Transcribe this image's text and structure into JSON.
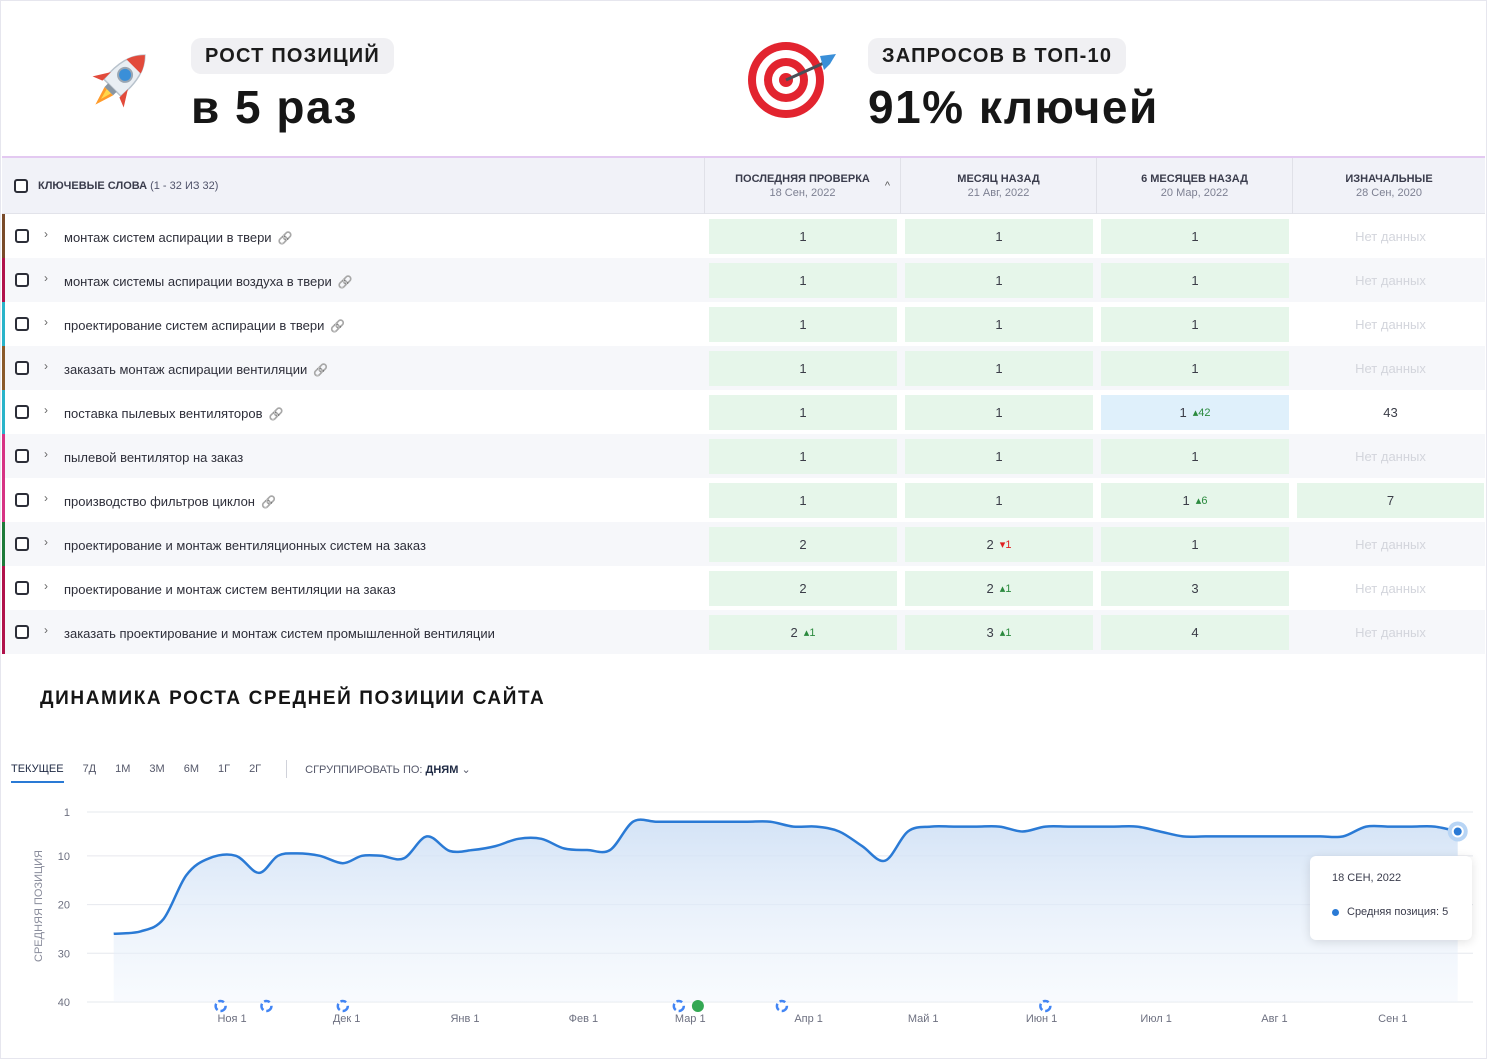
{
  "stats": [
    {
      "pill": "РОСТ ПОЗИЦИЙ",
      "big": "в 5 раз",
      "icon": "rocket-icon"
    },
    {
      "pill": "ЗАПРОСОВ В ТОП-10",
      "big": "91% ключей",
      "icon": "target-icon"
    }
  ],
  "table": {
    "keywords_header": "КЛЮЧЕВЫЕ СЛОВА",
    "keywords_count": "(1 - 32 ИЗ 32)",
    "columns": [
      {
        "title": "ПОСЛЕДНЯЯ ПРОВЕРКА",
        "date": "18 Сен, 2022"
      },
      {
        "title": "МЕСЯЦ НАЗАД",
        "date": "21 Авг, 2022"
      },
      {
        "title": "6 МЕСЯЦЕВ НАЗАД",
        "date": "20 Мар, 2022"
      },
      {
        "title": "ИЗНАЧАЛЬНЫЕ",
        "date": "28 Сен, 2020"
      }
    ],
    "no_data": "Нет данных",
    "rows": [
      {
        "keyword": "монтаж систем аспирации в твери",
        "link": true,
        "color": "#7a4b2a",
        "cells": [
          {
            "v": "1"
          },
          {
            "v": "1"
          },
          {
            "v": "1"
          },
          {
            "v": "Нет данных",
            "nd": true
          }
        ]
      },
      {
        "keyword": "монтаж системы аспирации воздуха в твери",
        "link": true,
        "color": "#b0124b",
        "cells": [
          {
            "v": "1"
          },
          {
            "v": "1"
          },
          {
            "v": "1"
          },
          {
            "v": "Нет данных",
            "nd": true
          }
        ]
      },
      {
        "keyword": "проектирование систем аспирации в твери",
        "link": true,
        "color": "#2ab3c9",
        "cells": [
          {
            "v": "1"
          },
          {
            "v": "1"
          },
          {
            "v": "1"
          },
          {
            "v": "Нет данных",
            "nd": true
          }
        ]
      },
      {
        "keyword": "заказать монтаж аспирации вентиляции",
        "link": true,
        "color": "#8a5a2a",
        "cells": [
          {
            "v": "1"
          },
          {
            "v": "1"
          },
          {
            "v": "1"
          },
          {
            "v": "Нет данных",
            "nd": true
          }
        ]
      },
      {
        "keyword": "поставка пылевых вентиляторов",
        "link": true,
        "color": "#2ab3c9",
        "cells": [
          {
            "v": "1"
          },
          {
            "v": "1"
          },
          {
            "v": "1",
            "chg": "42",
            "dir": "up",
            "bg": "b"
          },
          {
            "v": "43",
            "plain": true
          }
        ]
      },
      {
        "keyword": "пылевой вентилятор на заказ",
        "link": false,
        "color": "#d63384",
        "cells": [
          {
            "v": "1"
          },
          {
            "v": "1"
          },
          {
            "v": "1"
          },
          {
            "v": "Нет данных",
            "nd": true
          }
        ]
      },
      {
        "keyword": "производство фильтров циклон",
        "link": true,
        "color": "#d63384",
        "cells": [
          {
            "v": "1"
          },
          {
            "v": "1"
          },
          {
            "v": "1",
            "chg": "6",
            "dir": "up"
          },
          {
            "v": "7"
          }
        ]
      },
      {
        "keyword": "проектирование и монтаж вентиляционных систем на заказ",
        "link": false,
        "color": "#1e7a3a",
        "cells": [
          {
            "v": "2"
          },
          {
            "v": "2",
            "chg": "1",
            "dir": "down"
          },
          {
            "v": "1"
          },
          {
            "v": "Нет данных",
            "nd": true
          }
        ]
      },
      {
        "keyword": "проектирование и монтаж систем вентиляции на заказ",
        "link": false,
        "color": "#b0124b",
        "cells": [
          {
            "v": "2"
          },
          {
            "v": "2",
            "chg": "1",
            "dir": "up"
          },
          {
            "v": "3"
          },
          {
            "v": "Нет данных",
            "nd": true
          }
        ]
      },
      {
        "keyword": "заказать проектирование и монтаж систем промышленной вентиляции",
        "link": false,
        "color": "#b0124b",
        "cells": [
          {
            "v": "2",
            "chg": "1",
            "dir": "up"
          },
          {
            "v": "3",
            "chg": "1",
            "dir": "up"
          },
          {
            "v": "4"
          },
          {
            "v": "Нет данных",
            "nd": true
          }
        ]
      }
    ]
  },
  "chart_section": {
    "title": "ДИНАМИКА РОСТА СРЕДНЕЙ ПОЗИЦИИ САЙТА",
    "tabs": [
      "ТЕКУЩЕЕ",
      "7Д",
      "1М",
      "3М",
      "6М",
      "1Г",
      "2Г"
    ],
    "active_tab": "ТЕКУЩЕЕ",
    "group_label": "СГРУППИРОВАТЬ ПО:",
    "group_value": "ДНЯМ",
    "tooltip": {
      "date": "18 СЕН, 2022",
      "label": "Средняя позиция:",
      "value": "5"
    }
  },
  "chart_data": {
    "type": "area",
    "title": "",
    "xlabel": "",
    "ylabel": "СРЕДНЯЯ ПОЗИЦИЯ",
    "y_inverted": true,
    "ylim": [
      1,
      40
    ],
    "yticks": [
      "1",
      "10",
      "20",
      "30",
      "40"
    ],
    "xticks": [
      "Ноя 1",
      "Дек 1",
      "Янв 1",
      "Фев 1",
      "Мар 1",
      "Апр 1",
      "Май 1",
      "Июн 1",
      "Июл 1",
      "Авг 1",
      "Сен 1"
    ],
    "series": [
      {
        "color": "#2a7ad5",
        "x": [
          "2021-10-01",
          "2021-10-08",
          "2021-10-14",
          "2021-10-20",
          "2021-10-26",
          "2021-11-02",
          "2021-11-08",
          "2021-11-13",
          "2021-11-18",
          "2021-11-24",
          "2021-11-30",
          "2021-12-05",
          "2021-12-10",
          "2021-12-16",
          "2021-12-22",
          "2021-12-28",
          "2022-01-03",
          "2022-01-09",
          "2022-01-15",
          "2022-01-21",
          "2022-01-27",
          "2022-02-02",
          "2022-02-08",
          "2022-02-14",
          "2022-02-20",
          "2022-02-26",
          "2022-03-04",
          "2022-03-10",
          "2022-03-16",
          "2022-03-22",
          "2022-03-28",
          "2022-04-03",
          "2022-04-09",
          "2022-04-15",
          "2022-04-21",
          "2022-04-27",
          "2022-05-03",
          "2022-05-09",
          "2022-05-15",
          "2022-05-21",
          "2022-05-27",
          "2022-06-02",
          "2022-06-08",
          "2022-06-14",
          "2022-06-20",
          "2022-06-26",
          "2022-07-02",
          "2022-07-08",
          "2022-07-14",
          "2022-07-20",
          "2022-07-26",
          "2022-08-01",
          "2022-08-07",
          "2022-08-13",
          "2022-08-19",
          "2022-08-25",
          "2022-08-31",
          "2022-09-06",
          "2022-09-12",
          "2022-09-18"
        ],
        "values": [
          26,
          25.5,
          23,
          14,
          10.5,
          10,
          13.5,
          10,
          9.5,
          10,
          11.5,
          10,
          10,
          10.5,
          6,
          9,
          8.8,
          8,
          6.5,
          6.5,
          8.5,
          8.8,
          8.8,
          3,
          3,
          3,
          3,
          3,
          3,
          3,
          4,
          4,
          5,
          8,
          11,
          5,
          4,
          4,
          4,
          4,
          5,
          4,
          4,
          4,
          4,
          4,
          5,
          6,
          6,
          6,
          6,
          6,
          6,
          6,
          6,
          4,
          4,
          4,
          4,
          5
        ]
      }
    ],
    "grid": true,
    "legend": "none"
  }
}
